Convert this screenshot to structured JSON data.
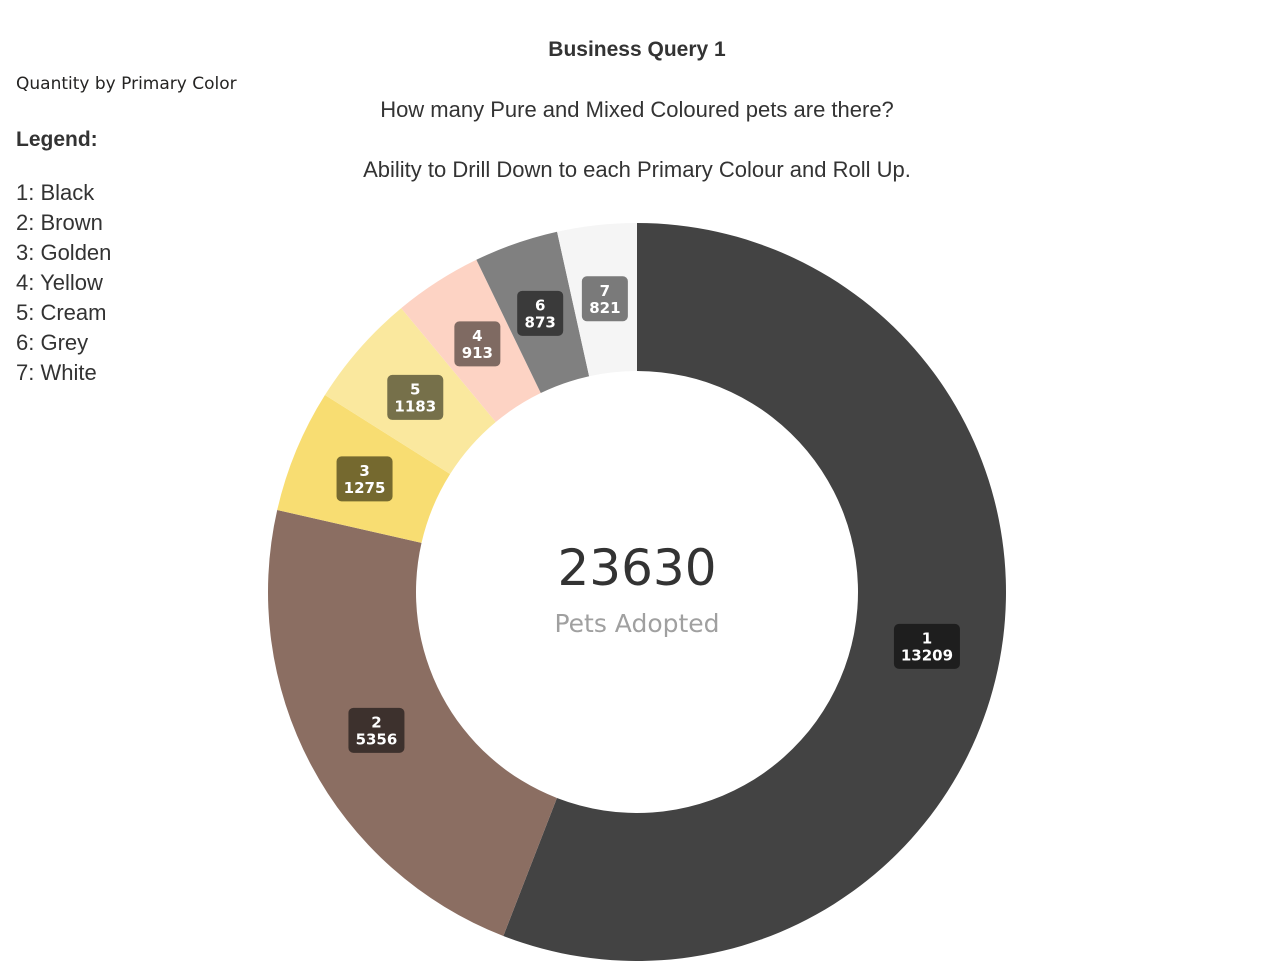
{
  "header": {
    "title": "Business Query 1",
    "line1": "How many Pure and Mixed Coloured pets are there?",
    "line2": "Ability to Drill Down to each Primary Colour and Roll Up."
  },
  "visual": {
    "title": "Quantity by Primary Color"
  },
  "legend": {
    "heading": "Legend:",
    "items": [
      "1: Black",
      "2: Brown",
      "3: Golden",
      "4: Yellow",
      "5: Cream",
      "6: Grey",
      "7: White"
    ]
  },
  "chart_data": {
    "type": "pie",
    "style": "donut",
    "categories": [
      "1",
      "2",
      "3",
      "5",
      "4",
      "6",
      "7"
    ],
    "values": [
      13209,
      5356,
      1275,
      1183,
      913,
      873,
      821
    ],
    "colors": [
      "#434343",
      "#8b6e62",
      "#f8dd72",
      "#fae89e",
      "#fdd3c4",
      "#808080",
      "#f5f5f5"
    ],
    "label_colors": [
      "#1e1e1e",
      "#3d312d",
      "#75692f",
      "#76704a",
      "#7f6a62",
      "#3a3a3a",
      "#7a7a7a"
    ],
    "center_total": "23630",
    "center_caption": "Pets Adopted"
  }
}
